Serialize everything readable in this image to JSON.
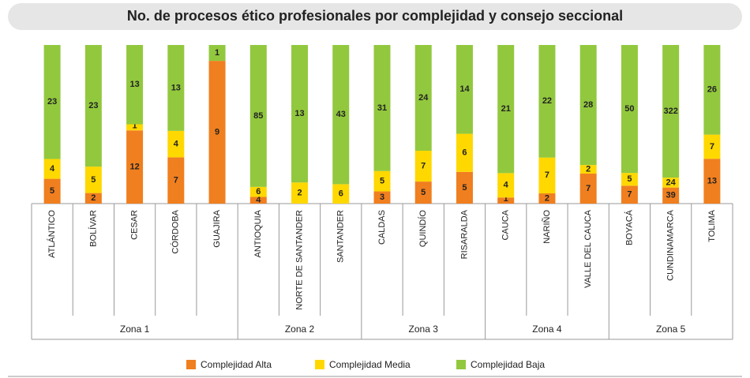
{
  "chart_data": {
    "type": "stacked_bar_100",
    "title": "No. de procesos ético profesionales por complejidad y consejo seccional",
    "zones": [
      {
        "name": "Zona 1",
        "categories": [
          "ATLÁNTICO",
          "BOLÍVAR",
          "CESAR",
          "CÓRDOBA",
          "GUAJIRA"
        ]
      },
      {
        "name": "Zona 2",
        "categories": [
          "ANTIOQUIA",
          "NORTE DE SANTANDER",
          "SANTANDER"
        ]
      },
      {
        "name": "Zona 3",
        "categories": [
          "CALDAS",
          "QUINDÍO",
          "RISARALDA"
        ]
      },
      {
        "name": "Zona 4",
        "categories": [
          "CAUCA",
          "NARIÑO",
          "VALLE DEL CAUCA"
        ]
      },
      {
        "name": "Zona 5",
        "categories": [
          "BOYACÁ",
          "CUNDINAMARCA",
          "TOLIMA"
        ]
      }
    ],
    "series": [
      {
        "name": "Complejidad Alta",
        "color": "#f07f1f",
        "values": [
          5,
          2,
          12,
          7,
          9,
          4,
          null,
          null,
          3,
          5,
          5,
          1,
          2,
          7,
          7,
          39,
          13
        ]
      },
      {
        "name": "Complejidad Media",
        "color": "#ffd800",
        "values": [
          4,
          5,
          1,
          4,
          null,
          6,
          2,
          6,
          5,
          7,
          6,
          4,
          7,
          2,
          5,
          24,
          7
        ]
      },
      {
        "name": "Complejidad Baja",
        "color": "#92c83e",
        "values": [
          23,
          23,
          13,
          13,
          1,
          85,
          13,
          43,
          31,
          24,
          14,
          21,
          22,
          28,
          50,
          322,
          26
        ]
      }
    ]
  }
}
